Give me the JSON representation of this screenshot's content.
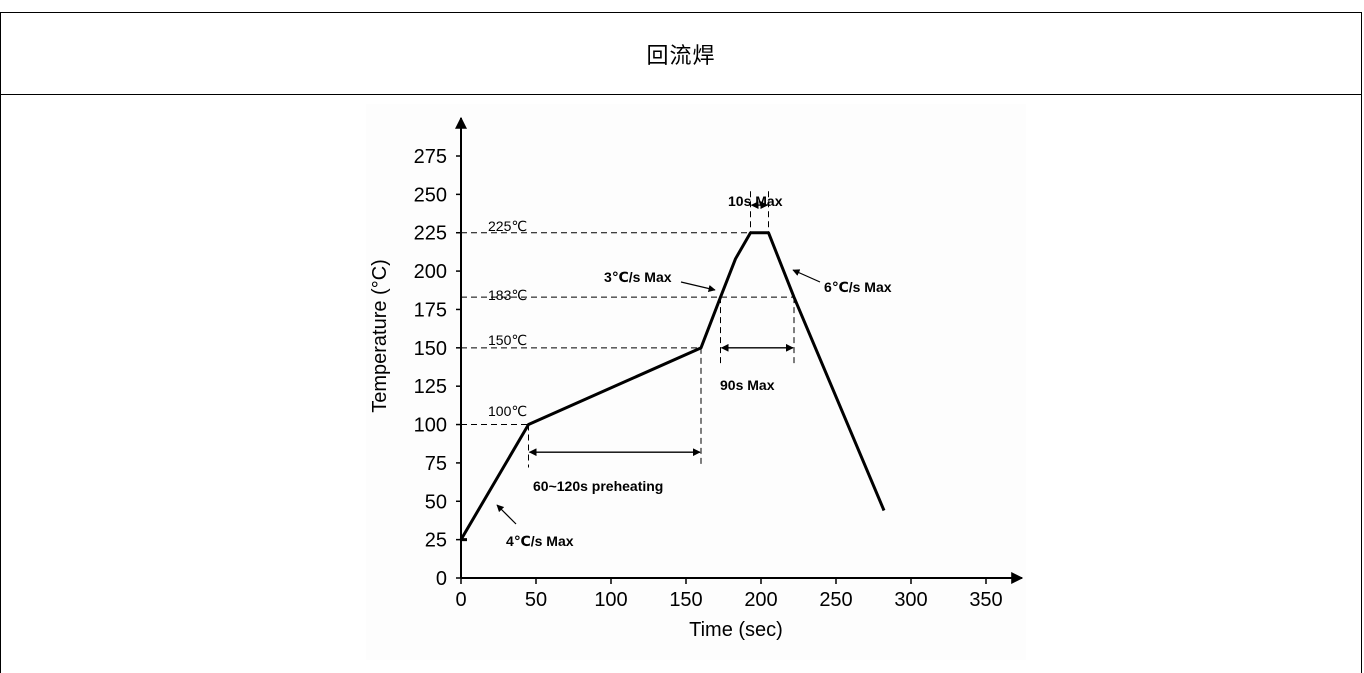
{
  "header": {
    "title": "回流焊"
  },
  "chart_data": {
    "type": "line",
    "xlabel": "Time (sec)",
    "ylabel": "Temperature (°C)",
    "xlim": [
      0,
      350
    ],
    "ylim": [
      0,
      275
    ],
    "xticks": [
      0,
      50,
      100,
      150,
      200,
      250,
      300,
      350
    ],
    "yticks": [
      0,
      25,
      50,
      75,
      100,
      125,
      150,
      175,
      200,
      225,
      250,
      275
    ],
    "series": [
      {
        "x": [
          0,
          45,
          160,
          173,
          183,
          193,
          205,
          222,
          282
        ],
        "y": [
          25,
          100,
          150,
          183,
          208,
          225,
          225,
          183,
          44
        ]
      }
    ],
    "reference_lines": [
      {
        "label": "225℃",
        "y": 225,
        "x_end": 193
      },
      {
        "label": "183℃",
        "y": 183,
        "x_end": 222
      },
      {
        "label": "150℃",
        "y": 150,
        "x_end": 160
      },
      {
        "label": "100℃",
        "y": 100,
        "x_end": 45
      }
    ],
    "annotations": [
      {
        "text": "10s Max",
        "x_from": 193,
        "x_to": 205,
        "y": 243
      },
      {
        "text": "90s Max",
        "x_from": 173,
        "x_to": 222,
        "y": 150
      },
      {
        "text": "60~120s preheating",
        "x_from": 45,
        "x_to": 160,
        "y": 82
      },
      {
        "text": "3℃/s Max"
      },
      {
        "text": "6℃/s Max"
      },
      {
        "text": "4℃/s Max"
      }
    ]
  }
}
